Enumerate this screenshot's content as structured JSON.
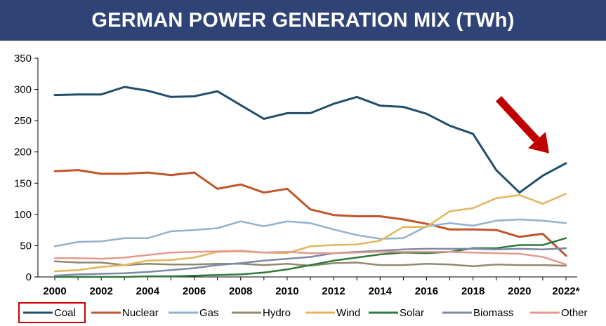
{
  "header": {
    "title": "GERMAN POWER GENERATION MIX (TWh)"
  },
  "chart_data": {
    "type": "line",
    "title": "GERMAN POWER GENERATION MIX (TWh)",
    "xlabel": "",
    "ylabel": "",
    "ylim": [
      0,
      350
    ],
    "y_ticks": [
      0,
      50,
      100,
      150,
      200,
      250,
      300,
      350
    ],
    "x": [
      2000,
      2001,
      2002,
      2003,
      2004,
      2005,
      2006,
      2007,
      2008,
      2009,
      2010,
      2011,
      2012,
      2013,
      2014,
      2015,
      2016,
      2017,
      2018,
      2019,
      2020,
      2021,
      2022
    ],
    "x_tick_labels": [
      "2000",
      "2002",
      "2004",
      "2006",
      "2008",
      "2010",
      "2012",
      "2014",
      "2016",
      "2018",
      "2020",
      "2022*"
    ],
    "grid": false,
    "legend_position": "bottom",
    "highlight": {
      "series": "Coal",
      "box_color": "#cc0000"
    },
    "annotation": {
      "type": "arrow",
      "color": "#c00000",
      "points_to": "Coal 2022"
    },
    "series": [
      {
        "name": "Coal",
        "color": "#1f4e6b",
        "width": 3,
        "values": [
          291,
          292,
          292,
          304,
          298,
          288,
          289,
          297,
          275,
          253,
          262,
          262,
          277,
          288,
          274,
          272,
          261,
          242,
          229,
          171,
          135,
          162,
          182
        ]
      },
      {
        "name": "Nuclear",
        "color": "#c0552b",
        "width": 3,
        "values": [
          169,
          171,
          165,
          165,
          167,
          163,
          167,
          141,
          148,
          135,
          141,
          108,
          99,
          97,
          97,
          92,
          85,
          76,
          76,
          75,
          64,
          69,
          34
        ]
      },
      {
        "name": "Gas",
        "color": "#8fb2cf",
        "width": 2.5,
        "values": [
          49,
          56,
          57,
          62,
          62,
          73,
          75,
          78,
          89,
          81,
          89,
          86,
          76,
          67,
          61,
          62,
          81,
          86,
          82,
          90,
          92,
          90,
          86
        ]
      },
      {
        "name": "Hydro",
        "color": "#8f8a6e",
        "width": 2.5,
        "values": [
          25,
          23,
          23,
          19,
          21,
          20,
          20,
          21,
          21,
          19,
          21,
          18,
          22,
          23,
          19,
          19,
          21,
          20,
          17,
          20,
          19,
          19,
          18
        ]
      },
      {
        "name": "Wind",
        "color": "#e2b55a",
        "width": 2.5,
        "values": [
          9,
          11,
          16,
          19,
          26,
          27,
          31,
          40,
          41,
          39,
          38,
          49,
          51,
          52,
          58,
          80,
          80,
          105,
          110,
          126,
          131,
          117,
          133
        ]
      },
      {
        "name": "Solar",
        "color": "#2f7a3a",
        "width": 2.5,
        "values": [
          0,
          0,
          0,
          0,
          1,
          1,
          2,
          3,
          4,
          7,
          12,
          19,
          26,
          31,
          36,
          39,
          38,
          40,
          46,
          46,
          51,
          51,
          62
        ]
      },
      {
        "name": "Biomass",
        "color": "#7a8aa6",
        "width": 2.5,
        "values": [
          2,
          4,
          5,
          6,
          8,
          11,
          14,
          19,
          22,
          26,
          29,
          32,
          38,
          40,
          42,
          44,
          45,
          45,
          45,
          44,
          45,
          44,
          46
        ]
      },
      {
        "name": "Other",
        "color": "#e39a8c",
        "width": 2.5,
        "values": [
          30,
          30,
          29,
          31,
          35,
          39,
          40,
          41,
          42,
          39,
          40,
          38,
          38,
          39,
          40,
          40,
          40,
          40,
          39,
          38,
          37,
          32,
          20
        ]
      }
    ]
  }
}
